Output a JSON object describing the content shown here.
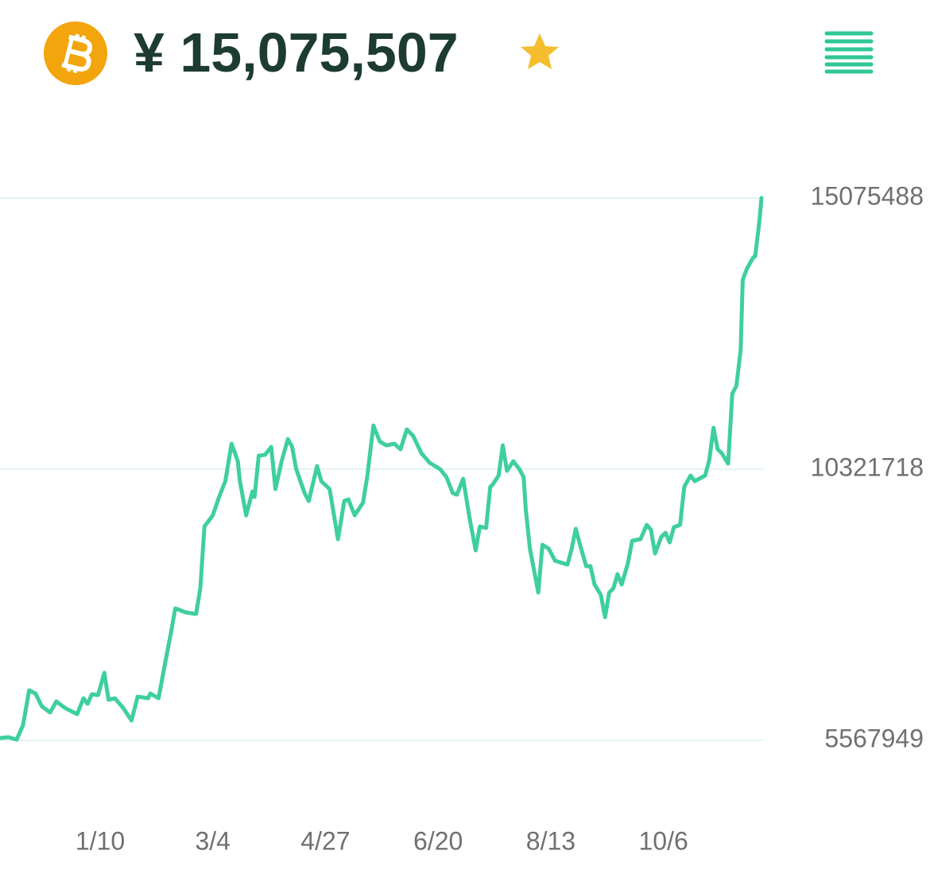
{
  "header": {
    "price": "¥ 15,075,507"
  },
  "chart_data": {
    "type": "line",
    "color": "#3fcf9c",
    "grid": true,
    "x": [
      0,
      4,
      8,
      11,
      14,
      17,
      20,
      24,
      27,
      31,
      37,
      40,
      42,
      44,
      47,
      50,
      52,
      55,
      59,
      63,
      66,
      71,
      72,
      76,
      78,
      80,
      82,
      84,
      89,
      94,
      96,
      98,
      102,
      105,
      108,
      111,
      114,
      115,
      118,
      121,
      122,
      124,
      127,
      130,
      132,
      135,
      138,
      140,
      142,
      146,
      148,
      150,
      152,
      154,
      158,
      162,
      165,
      167,
      170,
      174,
      176,
      179,
      182,
      185,
      189,
      192,
      195,
      198,
      202,
      206,
      211,
      214,
      217,
      219,
      222,
      225,
      228,
      230,
      233,
      235,
      236,
      239,
      241,
      243,
      246,
      249,
      251,
      252,
      254,
      258,
      260,
      263,
      266,
      272,
      274,
      276,
      278,
      281,
      283,
      285,
      288,
      290,
      292,
      294,
      296,
      298,
      301,
      303,
      307,
      310,
      312,
      314,
      317,
      319,
      321,
      323,
      326,
      328,
      331,
      333,
      338,
      340,
      342,
      344,
      346,
      349,
      351,
      353,
      355,
      356,
      358,
      361,
      362,
      364,
      365
    ],
    "values": [
      5610000,
      5624000,
      5582000,
      5833000,
      6446000,
      6390000,
      6167000,
      6056000,
      6251000,
      6140000,
      6028000,
      6307000,
      6209000,
      6377000,
      6363000,
      6753000,
      6279000,
      6307000,
      6140000,
      5916000,
      6335000,
      6307000,
      6390000,
      6307000,
      6697000,
      7088000,
      7464000,
      7882000,
      7812000,
      7785000,
      8231000,
      9318000,
      9513000,
      9834000,
      10113000,
      10768000,
      10461000,
      10113000,
      9513000,
      9931000,
      9834000,
      10559000,
      10573000,
      10712000,
      9973000,
      10461000,
      10852000,
      10712000,
      10322000,
      9904000,
      9764000,
      10071000,
      10378000,
      10113000,
      9973000,
      9095000,
      9764000,
      9792000,
      9513000,
      9736000,
      10182000,
      11089000,
      10810000,
      10740000,
      10768000,
      10670000,
      11019000,
      10907000,
      10601000,
      10433000,
      10322000,
      10182000,
      9904000,
      9876000,
      10154000,
      9485000,
      8900000,
      9318000,
      9290000,
      10015000,
      10043000,
      10210000,
      10740000,
      10294000,
      10461000,
      10322000,
      10182000,
      9625000,
      8928000,
      8161000,
      8997000,
      8928000,
      8719000,
      8649000,
      8928000,
      9276000,
      8997000,
      8621000,
      8621000,
      8300000,
      8119000,
      7729000,
      8161000,
      8231000,
      8482000,
      8300000,
      8677000,
      9067000,
      9095000,
      9346000,
      9262000,
      8844000,
      9137000,
      9207000,
      9039000,
      9304000,
      9346000,
      10015000,
      10210000,
      10113000,
      10210000,
      10489000,
      11047000,
      10670000,
      10601000,
      10419000,
      11646000,
      11786000,
      12413000,
      13640000,
      13835000,
      14030000,
      14058000,
      14671000,
      15075000
    ],
    "xlim": [
      0,
      365
    ],
    "xticks": [
      {
        "value": 48,
        "label": "1/10"
      },
      {
        "value": 102,
        "label": "3/4"
      },
      {
        "value": 156,
        "label": "4/27"
      },
      {
        "value": 210,
        "label": "6/20"
      },
      {
        "value": 264,
        "label": "8/13"
      },
      {
        "value": 318,
        "label": "10/6"
      }
    ],
    "ylim": [
      5567949,
      15075488
    ],
    "yticks": [
      5567949,
      10321718,
      15075488
    ]
  }
}
